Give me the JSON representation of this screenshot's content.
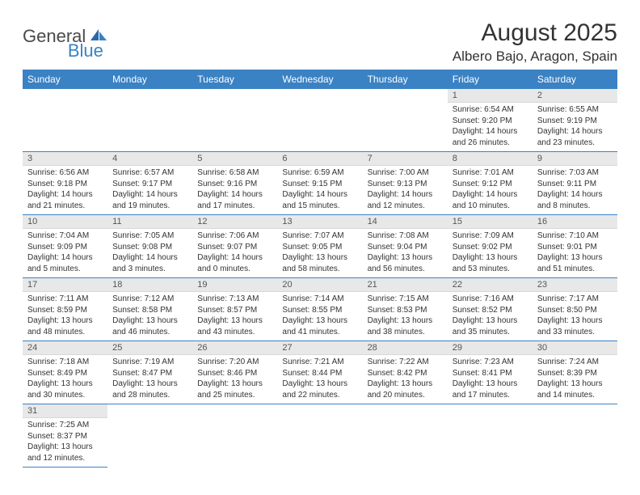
{
  "logo": {
    "text1": "General",
    "text2": "Blue"
  },
  "title": "August 2025",
  "location": "Albero Bajo, Aragon, Spain",
  "colors": {
    "headerBg": "#3a82c4",
    "headerText": "#ffffff",
    "dayNumBg": "#e8e8e8"
  },
  "dayHeaders": [
    "Sunday",
    "Monday",
    "Tuesday",
    "Wednesday",
    "Thursday",
    "Friday",
    "Saturday"
  ],
  "weeks": [
    [
      null,
      null,
      null,
      null,
      null,
      {
        "n": "1",
        "sr": "Sunrise: 6:54 AM",
        "ss": "Sunset: 9:20 PM",
        "dl": "Daylight: 14 hours and 26 minutes."
      },
      {
        "n": "2",
        "sr": "Sunrise: 6:55 AM",
        "ss": "Sunset: 9:19 PM",
        "dl": "Daylight: 14 hours and 23 minutes."
      }
    ],
    [
      {
        "n": "3",
        "sr": "Sunrise: 6:56 AM",
        "ss": "Sunset: 9:18 PM",
        "dl": "Daylight: 14 hours and 21 minutes."
      },
      {
        "n": "4",
        "sr": "Sunrise: 6:57 AM",
        "ss": "Sunset: 9:17 PM",
        "dl": "Daylight: 14 hours and 19 minutes."
      },
      {
        "n": "5",
        "sr": "Sunrise: 6:58 AM",
        "ss": "Sunset: 9:16 PM",
        "dl": "Daylight: 14 hours and 17 minutes."
      },
      {
        "n": "6",
        "sr": "Sunrise: 6:59 AM",
        "ss": "Sunset: 9:15 PM",
        "dl": "Daylight: 14 hours and 15 minutes."
      },
      {
        "n": "7",
        "sr": "Sunrise: 7:00 AM",
        "ss": "Sunset: 9:13 PM",
        "dl": "Daylight: 14 hours and 12 minutes."
      },
      {
        "n": "8",
        "sr": "Sunrise: 7:01 AM",
        "ss": "Sunset: 9:12 PM",
        "dl": "Daylight: 14 hours and 10 minutes."
      },
      {
        "n": "9",
        "sr": "Sunrise: 7:03 AM",
        "ss": "Sunset: 9:11 PM",
        "dl": "Daylight: 14 hours and 8 minutes."
      }
    ],
    [
      {
        "n": "10",
        "sr": "Sunrise: 7:04 AM",
        "ss": "Sunset: 9:09 PM",
        "dl": "Daylight: 14 hours and 5 minutes."
      },
      {
        "n": "11",
        "sr": "Sunrise: 7:05 AM",
        "ss": "Sunset: 9:08 PM",
        "dl": "Daylight: 14 hours and 3 minutes."
      },
      {
        "n": "12",
        "sr": "Sunrise: 7:06 AM",
        "ss": "Sunset: 9:07 PM",
        "dl": "Daylight: 14 hours and 0 minutes."
      },
      {
        "n": "13",
        "sr": "Sunrise: 7:07 AM",
        "ss": "Sunset: 9:05 PM",
        "dl": "Daylight: 13 hours and 58 minutes."
      },
      {
        "n": "14",
        "sr": "Sunrise: 7:08 AM",
        "ss": "Sunset: 9:04 PM",
        "dl": "Daylight: 13 hours and 56 minutes."
      },
      {
        "n": "15",
        "sr": "Sunrise: 7:09 AM",
        "ss": "Sunset: 9:02 PM",
        "dl": "Daylight: 13 hours and 53 minutes."
      },
      {
        "n": "16",
        "sr": "Sunrise: 7:10 AM",
        "ss": "Sunset: 9:01 PM",
        "dl": "Daylight: 13 hours and 51 minutes."
      }
    ],
    [
      {
        "n": "17",
        "sr": "Sunrise: 7:11 AM",
        "ss": "Sunset: 8:59 PM",
        "dl": "Daylight: 13 hours and 48 minutes."
      },
      {
        "n": "18",
        "sr": "Sunrise: 7:12 AM",
        "ss": "Sunset: 8:58 PM",
        "dl": "Daylight: 13 hours and 46 minutes."
      },
      {
        "n": "19",
        "sr": "Sunrise: 7:13 AM",
        "ss": "Sunset: 8:57 PM",
        "dl": "Daylight: 13 hours and 43 minutes."
      },
      {
        "n": "20",
        "sr": "Sunrise: 7:14 AM",
        "ss": "Sunset: 8:55 PM",
        "dl": "Daylight: 13 hours and 41 minutes."
      },
      {
        "n": "21",
        "sr": "Sunrise: 7:15 AM",
        "ss": "Sunset: 8:53 PM",
        "dl": "Daylight: 13 hours and 38 minutes."
      },
      {
        "n": "22",
        "sr": "Sunrise: 7:16 AM",
        "ss": "Sunset: 8:52 PM",
        "dl": "Daylight: 13 hours and 35 minutes."
      },
      {
        "n": "23",
        "sr": "Sunrise: 7:17 AM",
        "ss": "Sunset: 8:50 PM",
        "dl": "Daylight: 13 hours and 33 minutes."
      }
    ],
    [
      {
        "n": "24",
        "sr": "Sunrise: 7:18 AM",
        "ss": "Sunset: 8:49 PM",
        "dl": "Daylight: 13 hours and 30 minutes."
      },
      {
        "n": "25",
        "sr": "Sunrise: 7:19 AM",
        "ss": "Sunset: 8:47 PM",
        "dl": "Daylight: 13 hours and 28 minutes."
      },
      {
        "n": "26",
        "sr": "Sunrise: 7:20 AM",
        "ss": "Sunset: 8:46 PM",
        "dl": "Daylight: 13 hours and 25 minutes."
      },
      {
        "n": "27",
        "sr": "Sunrise: 7:21 AM",
        "ss": "Sunset: 8:44 PM",
        "dl": "Daylight: 13 hours and 22 minutes."
      },
      {
        "n": "28",
        "sr": "Sunrise: 7:22 AM",
        "ss": "Sunset: 8:42 PM",
        "dl": "Daylight: 13 hours and 20 minutes."
      },
      {
        "n": "29",
        "sr": "Sunrise: 7:23 AM",
        "ss": "Sunset: 8:41 PM",
        "dl": "Daylight: 13 hours and 17 minutes."
      },
      {
        "n": "30",
        "sr": "Sunrise: 7:24 AM",
        "ss": "Sunset: 8:39 PM",
        "dl": "Daylight: 13 hours and 14 minutes."
      }
    ],
    [
      {
        "n": "31",
        "sr": "Sunrise: 7:25 AM",
        "ss": "Sunset: 8:37 PM",
        "dl": "Daylight: 13 hours and 12 minutes."
      },
      null,
      null,
      null,
      null,
      null,
      null
    ]
  ]
}
